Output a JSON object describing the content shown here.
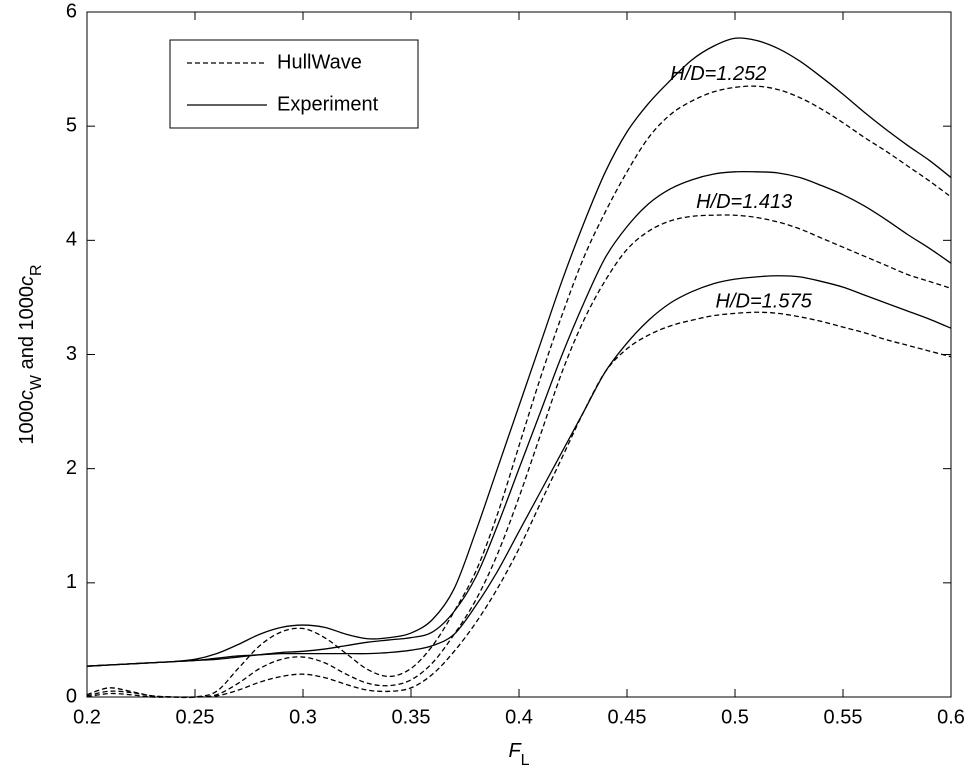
{
  "chart_data": {
    "type": "line",
    "xlabel": [
      {
        "text": "F",
        "style": "italic"
      },
      {
        "text": "L",
        "style": "sub"
      }
    ],
    "ylabel": [
      {
        "text": "1000",
        "style": "normal"
      },
      {
        "text": "c",
        "style": "italic"
      },
      {
        "text": "W",
        "style": "sub"
      },
      {
        "text": " and 1000",
        "style": "normal"
      },
      {
        "text": "c",
        "style": "italic"
      },
      {
        "text": "R",
        "style": "sub"
      }
    ],
    "xlim": [
      0.2,
      0.6
    ],
    "ylim": [
      0,
      6
    ],
    "xticks": [
      0.2,
      0.25,
      0.3,
      0.35,
      0.4,
      0.45,
      0.5,
      0.55,
      0.6
    ],
    "yticks": [
      0,
      1,
      2,
      3,
      4,
      5,
      6
    ],
    "legend": "upper left",
    "x": [
      0.2,
      0.21,
      0.22,
      0.23,
      0.24,
      0.25,
      0.26,
      0.27,
      0.28,
      0.29,
      0.3,
      0.31,
      0.32,
      0.33,
      0.34,
      0.35,
      0.36,
      0.37,
      0.38,
      0.39,
      0.4,
      0.41,
      0.42,
      0.43,
      0.44,
      0.45,
      0.46,
      0.47,
      0.48,
      0.49,
      0.5,
      0.51,
      0.52,
      0.53,
      0.54,
      0.55,
      0.56,
      0.57,
      0.58,
      0.59,
      0.6
    ],
    "series": [
      {
        "name": "HullWave",
        "linestyle": "dashed",
        "color": "#000000",
        "values": [
          0.02,
          0.08,
          0.05,
          0.01,
          0,
          0,
          0.05,
          0.25,
          0.45,
          0.57,
          0.6,
          0.52,
          0.38,
          0.24,
          0.18,
          0.25,
          0.45,
          0.75,
          1.1,
          1.6,
          2.2,
          2.8,
          3.35,
          3.85,
          4.25,
          4.6,
          4.9,
          5.1,
          5.22,
          5.3,
          5.34,
          5.35,
          5.32,
          5.25,
          5.15,
          5.03,
          4.9,
          4.78,
          4.65,
          4.52,
          4.38
        ]
      },
      {
        "name": "Experiment",
        "linestyle": "solid",
        "color": "#000000",
        "values": [
          0.27,
          0.28,
          0.29,
          0.3,
          0.31,
          0.33,
          0.38,
          0.46,
          0.55,
          0.61,
          0.63,
          0.61,
          0.55,
          0.51,
          0.52,
          0.56,
          0.68,
          0.95,
          1.45,
          2.0,
          2.55,
          3.1,
          3.65,
          4.15,
          4.6,
          4.95,
          5.2,
          5.4,
          5.58,
          5.7,
          5.77,
          5.75,
          5.68,
          5.57,
          5.43,
          5.28,
          5.12,
          4.97,
          4.83,
          4.7,
          4.55
        ]
      },
      {
        "name": "HullWave",
        "linestyle": "dashed",
        "color": "#000000",
        "values": [
          0.01,
          0.05,
          0.04,
          0.01,
          0,
          0,
          0.02,
          0.12,
          0.25,
          0.33,
          0.35,
          0.3,
          0.2,
          0.12,
          0.1,
          0.15,
          0.3,
          0.55,
          0.85,
          1.25,
          1.75,
          2.3,
          2.85,
          3.3,
          3.65,
          3.92,
          4.08,
          4.17,
          4.21,
          4.22,
          4.22,
          4.2,
          4.16,
          4.1,
          4.02,
          3.94,
          3.86,
          3.78,
          3.7,
          3.64,
          3.58
        ]
      },
      {
        "name": "Experiment",
        "linestyle": "solid",
        "color": "#000000",
        "values": [
          0.27,
          0.28,
          0.29,
          0.3,
          0.31,
          0.32,
          0.33,
          0.35,
          0.37,
          0.39,
          0.4,
          0.42,
          0.45,
          0.48,
          0.5,
          0.52,
          0.57,
          0.75,
          1.05,
          1.5,
          2.0,
          2.5,
          3.0,
          3.45,
          3.85,
          4.12,
          4.32,
          4.45,
          4.53,
          4.58,
          4.6,
          4.6,
          4.59,
          4.55,
          4.48,
          4.4,
          4.3,
          4.18,
          4.05,
          3.93,
          3.8
        ]
      },
      {
        "name": "HullWave",
        "linestyle": "dashed",
        "color": "#000000",
        "values": [
          0,
          0.03,
          0.02,
          0,
          0,
          0,
          0.01,
          0.06,
          0.13,
          0.18,
          0.2,
          0.17,
          0.11,
          0.06,
          0.05,
          0.08,
          0.2,
          0.4,
          0.65,
          0.95,
          1.3,
          1.7,
          2.1,
          2.5,
          2.85,
          3.05,
          3.17,
          3.25,
          3.3,
          3.34,
          3.36,
          3.37,
          3.36,
          3.33,
          3.29,
          3.24,
          3.19,
          3.13,
          3.08,
          3.03,
          2.98
        ]
      },
      {
        "name": "Experiment",
        "linestyle": "solid",
        "color": "#000000",
        "values": [
          0.27,
          0.28,
          0.29,
          0.3,
          0.31,
          0.32,
          0.34,
          0.36,
          0.37,
          0.38,
          0.38,
          0.38,
          0.38,
          0.38,
          0.39,
          0.41,
          0.45,
          0.55,
          0.8,
          1.1,
          1.45,
          1.8,
          2.15,
          2.5,
          2.85,
          3.1,
          3.3,
          3.45,
          3.55,
          3.62,
          3.66,
          3.68,
          3.69,
          3.68,
          3.64,
          3.59,
          3.52,
          3.45,
          3.38,
          3.31,
          3.23
        ]
      }
    ],
    "annotations": [
      {
        "text": "H/D=1.252",
        "x": 0.47,
        "y": 5.45
      },
      {
        "text": "H/D=1.413",
        "x": 0.482,
        "y": 4.33
      },
      {
        "text": "H/D=1.575",
        "x": 0.491,
        "y": 3.46
      }
    ]
  }
}
